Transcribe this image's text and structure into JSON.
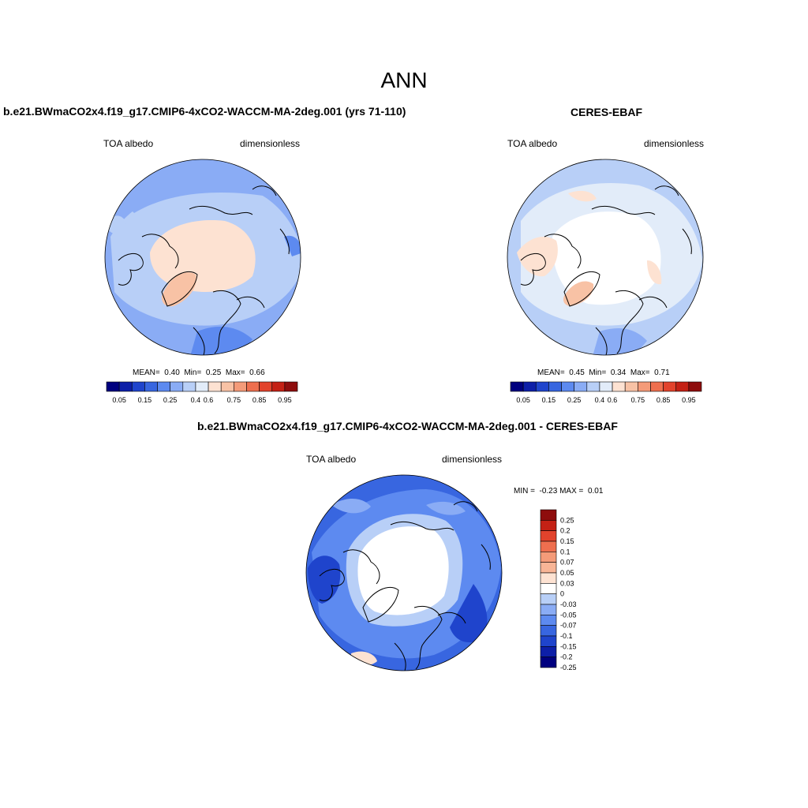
{
  "title": "ANN",
  "panels": [
    {
      "title": "b.e21.BWmaCO2x4.f19_g17.CMIP6-4xCO2-WACCM-MA-2deg.001 (yrs 71-110)",
      "variable": "TOA albedo",
      "units": "dimensionless",
      "stats": {
        "mean_label": "MEAN=",
        "mean": "0.40",
        "min_label": "Min=",
        "min": "0.25",
        "max_label": "Max=",
        "max": "0.66"
      }
    },
    {
      "title": "CERES-EBAF",
      "variable": "TOA albedo",
      "units": "dimensionless",
      "stats": {
        "mean_label": "MEAN=",
        "mean": "0.45",
        "min_label": "Min=",
        "min": "0.34",
        "max_label": "Max=",
        "max": "0.71"
      }
    },
    {
      "title": "b.e21.BWmaCO2x4.f19_g17.CMIP6-4xCO2-WACCM-MA-2deg.001 - CERES-EBAF",
      "variable": "TOA albedo",
      "units": "dimensionless",
      "stats": {
        "min_label": "MIN =",
        "min": "-0.23",
        "max_label": "MAX =",
        "max": "0.01"
      }
    }
  ],
  "colorbar_abs": {
    "labels": [
      "0.05",
      "0.15",
      "0.25",
      "0.4",
      "0.6",
      "0.75",
      "0.85",
      "0.95"
    ],
    "colors": [
      "#00007f",
      "#0d1fa8",
      "#1f44cc",
      "#3866e0",
      "#5d8af0",
      "#8aacf5",
      "#b8cff7",
      "#e2ecf9",
      "#fde2d2",
      "#f8c2a5",
      "#f49b79",
      "#ee6f4f",
      "#e2432c",
      "#c42115",
      "#8e0d0d"
    ]
  },
  "colorbar_diff": {
    "labels": [
      "0.25",
      "0.2",
      "0.15",
      "0.1",
      "0.07",
      "0.05",
      "0.03",
      "0",
      "-0.03",
      "-0.05",
      "-0.07",
      "-0.1",
      "-0.15",
      "-0.2",
      "-0.25"
    ],
    "colors": [
      "#8e0d0d",
      "#c42115",
      "#e2432c",
      "#ee6f4f",
      "#f49b79",
      "#f8b596",
      "#fde2d2",
      "#ffffff",
      "#b8cff7",
      "#8aacf5",
      "#5d8af0",
      "#3866e0",
      "#1f44cc",
      "#0d1fa8",
      "#00007f"
    ]
  }
}
